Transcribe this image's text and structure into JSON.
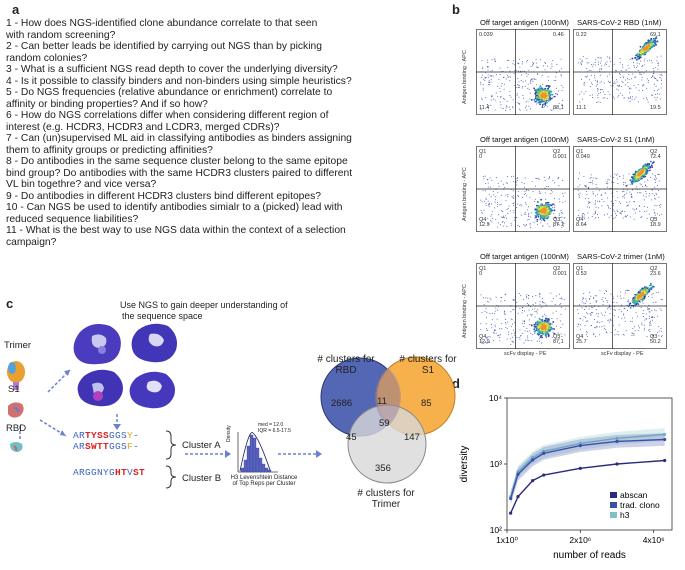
{
  "panels": {
    "a": "a",
    "b": "b",
    "c": "c",
    "d": "d"
  },
  "questions": [
    "1 - How does NGS-identified clone abundance correlate to that seen",
    "with random screening?",
    "2 - Can better leads be identified by carrying out NGS than by picking",
    "random colonies?",
    "3 - What is a sufficient NGS read depth to cover the underlying diversity?",
    "4 - Is it possible to classify binders and non-binders using simple heuristics?",
    "5 - Do NGS frequencies (relative abundance or enrichment) correlate to",
    "affinity or binding properties? And if so how?",
    "6 - How do NGS correlations differ when considering different region of",
    "interest (e.g. HCDR3, HCDR3 and LCDR3, merged CDRs)?",
    "7 - Can (un)supervised ML aid in classifying antibodies as binders assigning",
    "them to affinity groups or predicting affinities?",
    "8 - Do antibodies in the same sequence cluster belong to the same epitope",
    "bind group? Do antibodies with the same HCDR3 clusters paired to different",
    "VL bin togethre? and vice versa?",
    "9 - Do antibodies in different HCDR3 clusters bind different epitopes?",
    "10 - Can NGS be used to identify antibodies simialr to a (picked) lead with",
    "reduced sequence liabilities?",
    "11 - What is the best way to use NGS data within the context of a  selection",
    "campaign?"
  ],
  "flow": {
    "rows": [
      {
        "left": "Off target antigen (100nM)",
        "right": "SARS-CoV-2 RBD (1nM)",
        "lq": [
          "0.039",
          "0.46",
          "11.4",
          "88.1"
        ],
        "rq": [
          "0.22",
          "69.1",
          "11.1",
          "19.5"
        ]
      },
      {
        "left": "Off target antigen (100nM)",
        "right": "SARS-CoV-2 S1 (1nM)",
        "lq": [
          "0",
          "0.001",
          "12.9",
          "87.1"
        ],
        "rq": [
          "0.049",
          "72.4",
          "8.64",
          "18.9"
        ]
      },
      {
        "left": "Off target antigen (100nM)",
        "right": "SARS-CoV-2 trimer (1nM)",
        "lq": [
          "0",
          "0.001",
          "12.9",
          "87.1"
        ],
        "rq": [
          "0.53",
          "23.6",
          "25.7",
          "50.2"
        ]
      }
    ],
    "ylabel": "Antigen binding - APC",
    "xlabel": "scFv display - PE",
    "q": [
      "Q1",
      "Q2",
      "Q4",
      "Q3"
    ]
  },
  "panel_c": {
    "title1": "Use NGS to gain deeper understanding of",
    "title2": "the sequence space",
    "trimer": "Trimer",
    "s1": "S1",
    "rbd": "RBD",
    "clusterA": "Cluster A",
    "clusterB": "Cluster B",
    "seq1": {
      "a": "AR",
      "b": "TYSS",
      "c": "GGS",
      "d": "Y",
      "e": "-"
    },
    "seq2": {
      "a": "AR",
      "b": "SWTT",
      "c": "GGS",
      "d": "F",
      "e": "-"
    },
    "seq3": {
      "a": "ARGGNYG",
      "b": "HT",
      "c": "V",
      "d": "ST"
    },
    "hist_ylabel": "Density",
    "hist_xlabel1": "H3 Levenshtein Distance",
    "hist_xlabel2": "of Top Reps per Cluster",
    "med": "med = 12.0",
    "iqr": "IQR = 6.5-17.5",
    "venn": {
      "rbd_label1": "# clusters for",
      "rbd_label2": "RBD",
      "s1_label1": "# clusters for",
      "s1_label2": "S1",
      "tri_label1": "# clusters for",
      "tri_label2": "Trimer",
      "n_rbd": "2686",
      "n_s1": "85",
      "n_tri": "356",
      "n_rbd_s1": "11",
      "n_rbd_tri": "45",
      "n_s1_tri": "147",
      "n_all": "59"
    }
  },
  "chart_data": {
    "type": "line",
    "ylabel": "diversity",
    "xlabel": "number of reads",
    "yscale": "log",
    "ylim": [
      100,
      10000
    ],
    "xlim": [
      0,
      4500000
    ],
    "yticks": [
      "10²",
      "10³",
      "10⁴"
    ],
    "xticks": [
      "1x10⁰",
      "2x10⁶",
      "4x10⁶"
    ],
    "legend": "bottom-right",
    "series": [
      {
        "name": "abscan",
        "color": "#2a2a80",
        "x": [
          100000,
          300000,
          700000,
          1000000,
          2000000,
          3000000,
          4300000
        ],
        "values": [
          180,
          320,
          560,
          680,
          860,
          1000,
          1130
        ]
      },
      {
        "name": "trad. clono",
        "color": "#3a4fa8",
        "x": [
          100000,
          300000,
          700000,
          1000000,
          2000000,
          3000000,
          4300000
        ],
        "values": [
          300,
          700,
          1150,
          1450,
          1900,
          2200,
          2350
        ]
      },
      {
        "name": "h3",
        "color": "#7fc0c8",
        "x": [
          100000,
          300000,
          700000,
          1000000,
          2000000,
          3000000,
          4300000
        ],
        "values": [
          320,
          760,
          1250,
          1550,
          2050,
          2450,
          2800
        ]
      }
    ]
  }
}
